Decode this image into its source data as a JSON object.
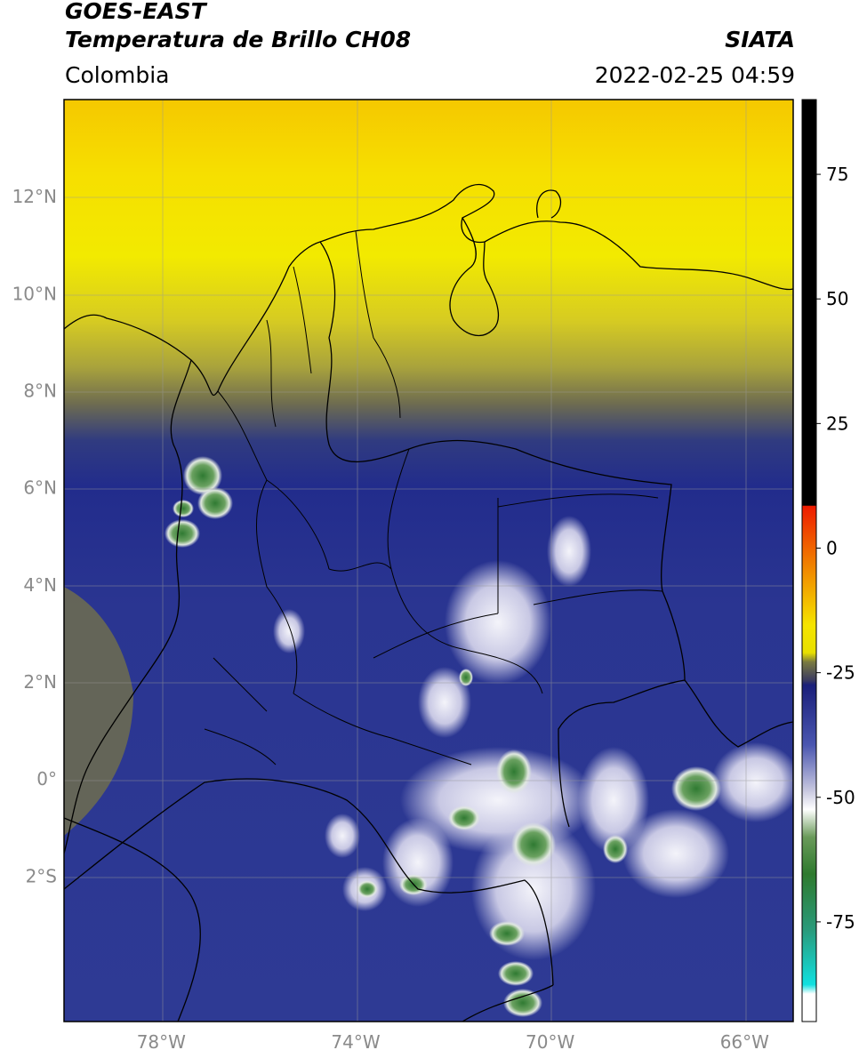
{
  "header": {
    "line1": "GOES-EAST",
    "line2": "Temperatura de Brillo CH08",
    "agency": "SIATA",
    "region": "Colombia",
    "timestamp": "2022-02-25 04:59"
  },
  "map": {
    "lon_range": [
      -80,
      -65
    ],
    "lat_range": [
      -5,
      14
    ],
    "lat_ticks": [
      {
        "value": 12,
        "label": "12°N"
      },
      {
        "value": 10,
        "label": "10°N"
      },
      {
        "value": 8,
        "label": "8°N"
      },
      {
        "value": 6,
        "label": "6°N"
      },
      {
        "value": 4,
        "label": "4°N"
      },
      {
        "value": 2,
        "label": "2°N"
      },
      {
        "value": 0,
        "label": "0°"
      },
      {
        "value": -2,
        "label": "2°S"
      }
    ],
    "lon_ticks": [
      {
        "value": -78,
        "label": "78°W"
      },
      {
        "value": -74,
        "label": "74°W"
      },
      {
        "value": -70,
        "label": "70°W"
      },
      {
        "value": -66,
        "label": "66°W"
      }
    ],
    "colors": {
      "warm": "#f2e600",
      "warm_orange": "#f7c400",
      "mid_olive": "#7d7b45",
      "cold_blue": "#2b3590",
      "cold_deep": "#1e2a8a",
      "cloud_white": "#e8e8f4",
      "cloud_green": "#4d8f4d"
    }
  },
  "colorbar": {
    "range": [
      -95,
      90
    ],
    "ticks": [
      {
        "value": 75,
        "label": "75"
      },
      {
        "value": 50,
        "label": "50"
      },
      {
        "value": 25,
        "label": "25"
      },
      {
        "value": 0,
        "label": "0"
      },
      {
        "value": -25,
        "label": "-25"
      },
      {
        "value": -50,
        "label": "-50"
      },
      {
        "value": -75,
        "label": "-75"
      }
    ]
  }
}
